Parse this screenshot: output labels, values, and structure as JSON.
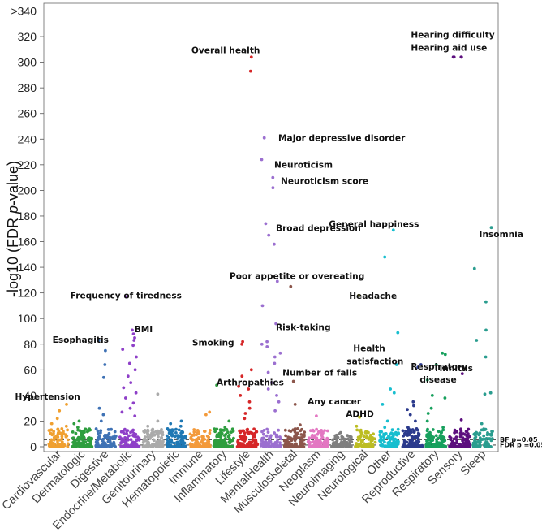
{
  "chart_data": {
    "type": "scatter",
    "title": "",
    "xlabel": "",
    "ylabel_parts": [
      "-log10 (FDR ",
      "p",
      "-value)"
    ],
    "ylim": [
      -2,
      345
    ],
    "yticks": [
      0,
      20,
      40,
      60,
      80,
      100,
      120,
      140,
      160,
      180,
      200,
      220,
      240,
      260,
      280,
      300,
      320,
      340
    ],
    "ytick_labels": [
      "0",
      "20",
      "40",
      "60",
      "80",
      "100",
      "120",
      "140",
      "160",
      "180",
      "200",
      "220",
      "240",
      "260",
      "280",
      "300",
      "320",
      ">340"
    ],
    "thresholds": [
      {
        "name": "BF",
        "value": 5.4,
        "label": "BF p=0.05"
      },
      {
        "name": "FDR",
        "value": 1.3,
        "label": "FDR p =0.05"
      }
    ],
    "categories": [
      {
        "name": "Cardiovascular",
        "color": "#F0A030",
        "peaks": [
          33,
          28,
          22,
          18,
          16,
          14,
          12
        ]
      },
      {
        "name": "Dermatologic",
        "color": "#2E9E3F",
        "peaks": [
          20,
          18,
          15,
          10,
          8
        ]
      },
      {
        "name": "Digestive",
        "color": "#3F72B5",
        "peaks": [
          83,
          75,
          64,
          54,
          30,
          25,
          20
        ]
      },
      {
        "name": "Endocrine/Metabolic",
        "color": "#8E3FC8",
        "peaks": [
          117,
          91,
          88,
          85,
          83,
          79,
          76,
          70,
          65,
          60,
          55,
          50,
          46,
          42,
          38,
          34,
          30,
          27,
          24
        ]
      },
      {
        "name": "Genitourinary",
        "color": "#AAAAAA",
        "peaks": [
          41,
          20,
          16,
          12
        ]
      },
      {
        "name": "Hematopoietic",
        "color": "#1F78B4",
        "peaks": [
          20,
          18,
          16,
          14
        ]
      },
      {
        "name": "Immune",
        "color": "#F39A3B",
        "peaks": [
          27,
          25,
          11,
          9
        ]
      },
      {
        "name": "Inflammatory",
        "color": "#2E9E3F",
        "peaks": [
          48,
          20,
          15,
          12
        ]
      },
      {
        "name": "Lifestyle",
        "color": "#D62728",
        "peaks": [
          304,
          293,
          82,
          80,
          60,
          55,
          47,
          45,
          40,
          35,
          30,
          26,
          22
        ]
      },
      {
        "name": "MentalHealth",
        "color": "#9B6FD0",
        "peaks": [
          241,
          224,
          210,
          202,
          174,
          165,
          158,
          129,
          110,
          96,
          82,
          80,
          78,
          73,
          70,
          65,
          58,
          50,
          45,
          40,
          35,
          28
        ]
      },
      {
        "name": "Musculoskeletal",
        "color": "#8C564B",
        "peaks": [
          125,
          51,
          33,
          17,
          14
        ]
      },
      {
        "name": "Neoplasm",
        "color": "#E377C2",
        "peaks": [
          24
        ]
      },
      {
        "name": "Neuroimaging",
        "color": "#7F7F7F",
        "peaks": [
          11,
          10,
          9
        ]
      },
      {
        "name": "Neurological",
        "color": "#BCBD22",
        "peaks": [
          118,
          23,
          16,
          12,
          10
        ]
      },
      {
        "name": "Other",
        "color": "#17BECF",
        "peaks": [
          169,
          148,
          89,
          64,
          45,
          42,
          33,
          20,
          15
        ]
      },
      {
        "name": "Reproductive",
        "color": "#2B3A8C",
        "peaks": [
          64,
          62,
          35,
          32,
          29,
          25,
          20,
          15
        ]
      },
      {
        "name": "Respiratory",
        "color": "#17A05D",
        "peaks": [
          73,
          72,
          64,
          52,
          40,
          38,
          30,
          26,
          20,
          15
        ]
      },
      {
        "name": "Sensory",
        "color": "#5C0F7E",
        "peaks": [
          304,
          304,
          304,
          304,
          57,
          21,
          12
        ]
      },
      {
        "name": "Sleep",
        "color": "#2A9D8F",
        "peaks": [
          171,
          139,
          113,
          91,
          83,
          70,
          42,
          41,
          18,
          9
        ]
      }
    ],
    "annotations": [
      {
        "text": "Overall health",
        "category": "Lifestyle",
        "value": 304
      },
      {
        "text": "Hearing difficulty",
        "category": "Sensory",
        "value": 304
      },
      {
        "text": "Hearing aid use",
        "category": "Sensory",
        "value": 304
      },
      {
        "text": "Major depressive disorder",
        "category": "MentalHealth",
        "value": 241
      },
      {
        "text": "Neuroticism",
        "category": "MentalHealth",
        "value": 224
      },
      {
        "text": "Neuroticism score",
        "category": "MentalHealth",
        "value": 210
      },
      {
        "text": "Broad depression",
        "category": "MentalHealth",
        "value": 174
      },
      {
        "text": "General happiness",
        "category": "Other",
        "value": 169
      },
      {
        "text": "Insomnia",
        "category": "Sleep",
        "value": 171
      },
      {
        "text": "Poor appetite or overeating",
        "category": "MentalHealth",
        "value": 129
      },
      {
        "text": "Frequency of tiredness",
        "category": "Endocrine/Metabolic",
        "value": 117
      },
      {
        "text": "Headache",
        "category": "Neurological",
        "value": 118
      },
      {
        "text": "Risk-taking",
        "category": "MentalHealth",
        "value": 96
      },
      {
        "text": "Esophagitis",
        "category": "Digestive",
        "value": 83
      },
      {
        "text": "BMI",
        "category": "Endocrine/Metabolic",
        "value": 88
      },
      {
        "text": "Smoking",
        "category": "Lifestyle",
        "value": 82
      },
      {
        "text": "Health",
        "category": "Other",
        "value": 89
      },
      {
        "text": "satisfaction",
        "category": "Other",
        "value": 89
      },
      {
        "text": "Respiratory",
        "category": "Respiratory",
        "value": 73
      },
      {
        "text": "disease",
        "category": "Respiratory",
        "value": 73
      },
      {
        "text": "Tinnitus",
        "category": "Sensory",
        "value": 57
      },
      {
        "text": "Number of falls",
        "category": "Musculoskeletal",
        "value": 51
      },
      {
        "text": "Arthropathies",
        "category": "Inflammatory",
        "value": 48
      },
      {
        "text": "Any cancer",
        "category": "Musculoskeletal",
        "value": 33
      },
      {
        "text": "Hypertension",
        "category": "Cardiovascular",
        "value": 33
      },
      {
        "text": "ADHD",
        "category": "Neurological",
        "value": 23
      }
    ]
  }
}
